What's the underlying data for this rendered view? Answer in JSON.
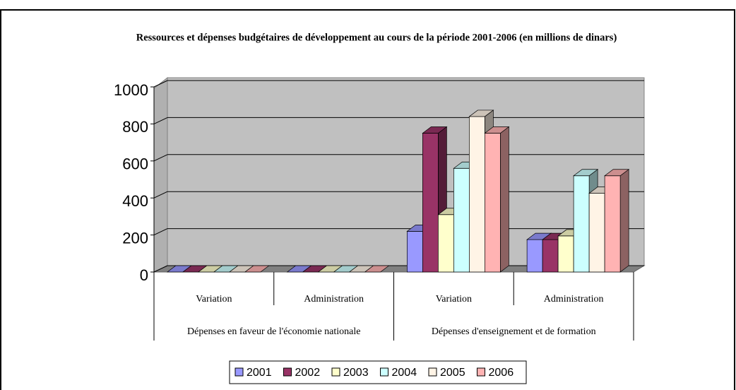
{
  "chart_data": {
    "type": "bar3d",
    "title": "Ressources et dépenses budgétaires de développement au cours de la période 2001-2006 (en millions de dinars)",
    "categories": [
      "Variation",
      "Administration",
      "Variation",
      "Administration"
    ],
    "group_labels": [
      "Dépenses en faveur de l'économie nationale",
      "Dépenses d'enseignement et de formation"
    ],
    "series": [
      {
        "name": "2001",
        "color": "#9999ff",
        "values": [
          0,
          0,
          220,
          175
        ]
      },
      {
        "name": "2002",
        "color": "#993366",
        "values": [
          0,
          0,
          750,
          175
        ]
      },
      {
        "name": "2003",
        "color": "#ffffcc",
        "values": [
          0,
          0,
          310,
          195
        ]
      },
      {
        "name": "2004",
        "color": "#ccffff",
        "values": [
          0,
          0,
          560,
          520
        ]
      },
      {
        "name": "2005",
        "color": "#fff4e6",
        "values": [
          0,
          0,
          840,
          425
        ]
      },
      {
        "name": "2006",
        "color": "#ffb3b3",
        "values": [
          0,
          0,
          750,
          520
        ]
      }
    ],
    "ylim": [
      0,
      1000
    ],
    "yticks": [
      0,
      200,
      400,
      600,
      800,
      1000
    ],
    "grid": true,
    "legend": "bottom"
  }
}
